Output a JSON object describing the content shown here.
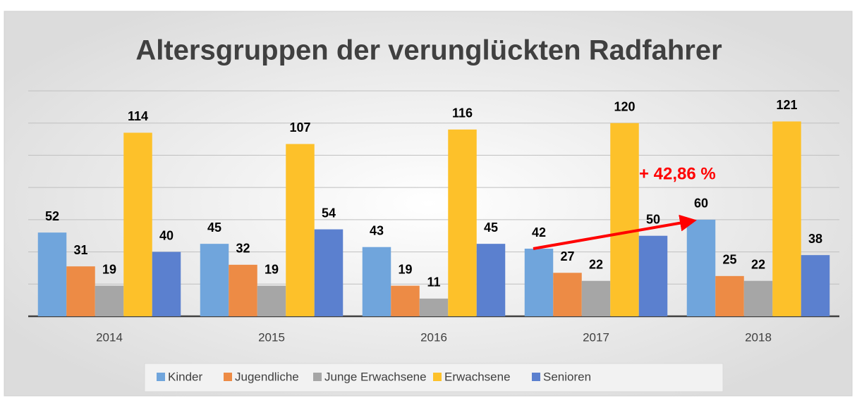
{
  "chart_data": {
    "type": "bar",
    "title": "Altersgruppen der verunglückten Radfahrer",
    "categories": [
      "2014",
      "2015",
      "2016",
      "2017",
      "2018"
    ],
    "series": [
      {
        "name": "Kinder",
        "color": "#70a5dc",
        "values": [
          52,
          45,
          43,
          42,
          60
        ]
      },
      {
        "name": "Jugendliche",
        "color": "#ed8b45",
        "values": [
          31,
          32,
          19,
          27,
          25
        ]
      },
      {
        "name": "Junge Erwachsene",
        "color": "#a6a6a6",
        "values": [
          19,
          19,
          11,
          22,
          22
        ]
      },
      {
        "name": "Erwachsene",
        "color": "#fdc12a",
        "values": [
          114,
          107,
          116,
          120,
          121
        ]
      },
      {
        "name": "Senioren",
        "color": "#5b80cf",
        "values": [
          40,
          54,
          45,
          50,
          38
        ]
      }
    ],
    "ylim": [
      0,
      140
    ],
    "yticks": [
      0,
      20,
      40,
      60,
      80,
      100,
      120,
      140
    ],
    "grid": true,
    "annotation": "+ 42,86 %",
    "annotation_color": "#ff0000",
    "legend": "bottom"
  }
}
